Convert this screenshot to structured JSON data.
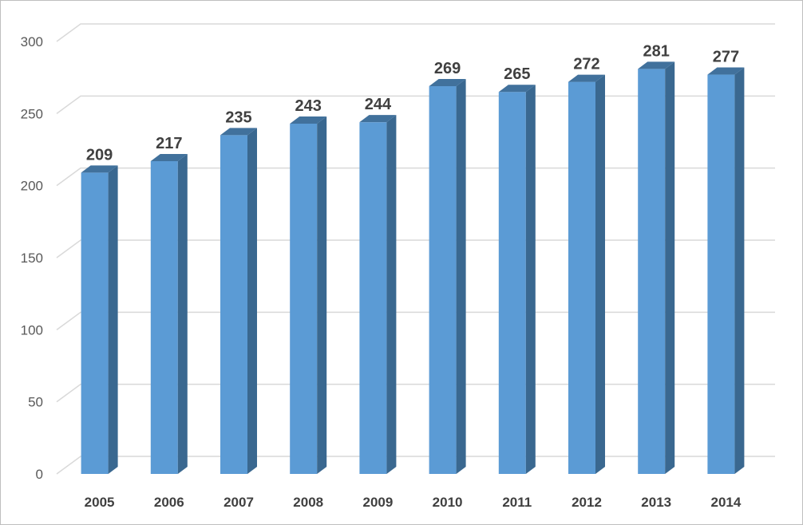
{
  "chart_data": {
    "type": "bar",
    "categories": [
      "2005",
      "2006",
      "2007",
      "2008",
      "2009",
      "2010",
      "2011",
      "2012",
      "2013",
      "2014"
    ],
    "values": [
      209,
      217,
      235,
      243,
      244,
      269,
      265,
      272,
      281,
      277
    ],
    "ylim": [
      0,
      300
    ],
    "yticks": [
      0,
      50,
      100,
      150,
      200,
      250,
      300
    ],
    "grid": true,
    "three_d": true,
    "data_labels": true,
    "colors": {
      "bar_front": "#5b9bd5",
      "bar_side": "#3a6890",
      "bar_top": "#41719c",
      "gridline": "#d9d9d9",
      "axis_text": "#595959",
      "label_text": "#404040"
    }
  }
}
